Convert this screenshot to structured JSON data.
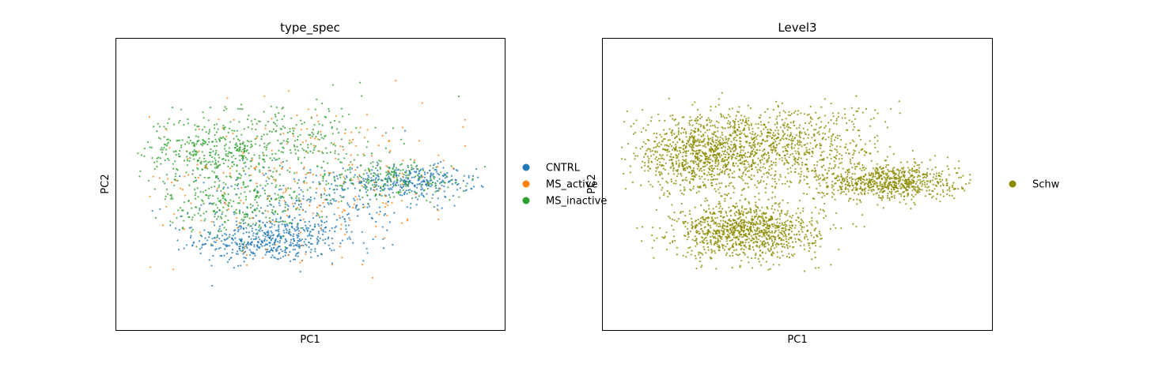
{
  "chart_data": [
    {
      "type": "scatter",
      "title": "type_spec",
      "xlabel": "PC1",
      "ylabel": "PC2",
      "x_ticks": "none",
      "y_ticks": "none",
      "grid": false,
      "legend_placement": "right",
      "series": [
        {
          "name": "CNTRL",
          "color": "#1f77b4",
          "clusters": [
            {
              "cx": 0.38,
              "cy": -0.42,
              "sx": 0.1,
              "sy": 0.08,
              "weight": 0.45
            },
            {
              "cx": 0.78,
              "cy": 0.02,
              "sx": 0.09,
              "sy": 0.06,
              "weight": 0.3
            },
            {
              "cx": 0.5,
              "cy": -0.15,
              "sx": 0.16,
              "sy": 0.16,
              "weight": 0.25
            }
          ]
        },
        {
          "name": "MS_active",
          "color": "#ff7f0e",
          "clusters": [
            {
              "cx": 0.5,
              "cy": 0.05,
              "sx": 0.22,
              "sy": 0.28,
              "weight": 1.0
            }
          ]
        },
        {
          "name": "MS_inactive",
          "color": "#2ca02c",
          "clusters": [
            {
              "cx": 0.24,
              "cy": 0.25,
              "sx": 0.11,
              "sy": 0.13,
              "weight": 0.4
            },
            {
              "cx": 0.3,
              "cy": -0.15,
              "sx": 0.1,
              "sy": 0.12,
              "weight": 0.25
            },
            {
              "cx": 0.72,
              "cy": 0.04,
              "sx": 0.11,
              "sy": 0.08,
              "weight": 0.2
            },
            {
              "cx": 0.48,
              "cy": 0.35,
              "sx": 0.12,
              "sy": 0.14,
              "weight": 0.15
            }
          ]
        }
      ]
    },
    {
      "type": "scatter",
      "title": "Level3",
      "xlabel": "PC1",
      "ylabel": "PC2",
      "x_ticks": "none",
      "y_ticks": "none",
      "grid": false,
      "legend_placement": "right",
      "series": [
        {
          "name": "Schw",
          "color": "#8b8b00",
          "clusters": [
            {
              "cx": 0.24,
              "cy": 0.22,
              "sx": 0.11,
              "sy": 0.14,
              "weight": 0.3
            },
            {
              "cx": 0.36,
              "cy": -0.35,
              "sx": 0.1,
              "sy": 0.1,
              "weight": 0.3
            },
            {
              "cx": 0.75,
              "cy": 0.02,
              "sx": 0.1,
              "sy": 0.07,
              "weight": 0.22
            },
            {
              "cx": 0.48,
              "cy": 0.3,
              "sx": 0.13,
              "sy": 0.15,
              "weight": 0.18
            }
          ]
        }
      ]
    }
  ]
}
